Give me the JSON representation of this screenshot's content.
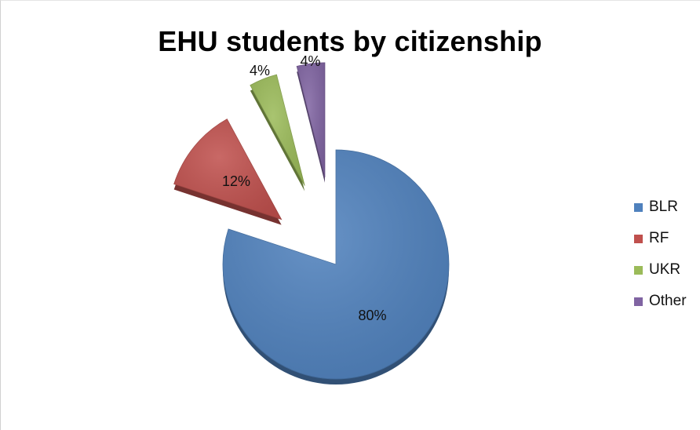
{
  "chart_data": {
    "type": "pie",
    "title": "EHU students by citizenship",
    "categories": [
      "BLR",
      "RF",
      "UKR",
      "Other"
    ],
    "values": [
      80,
      12,
      4,
      4
    ],
    "data_labels": [
      "80%",
      "12%",
      "4%",
      "4%"
    ],
    "colors": [
      "#4F81BD",
      "#C0504D",
      "#9BBB59",
      "#8064A2"
    ],
    "exploded": [
      false,
      true,
      true,
      true
    ],
    "legend_position": "right",
    "style": "3d-tilted"
  }
}
